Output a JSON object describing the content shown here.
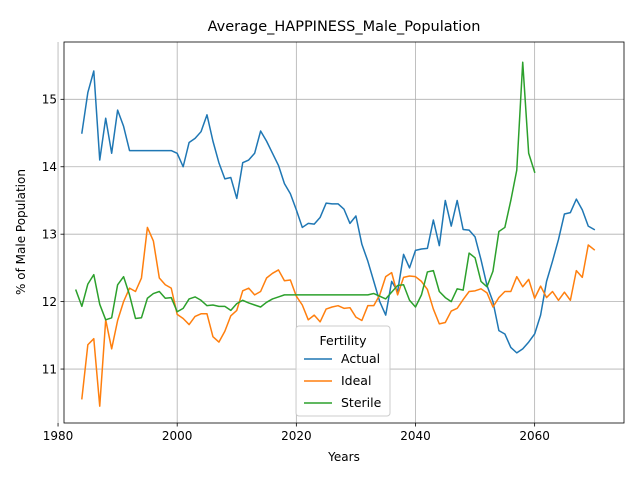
{
  "chart_data": {
    "type": "line",
    "title": "Average_HAPPINESS_Male_Population",
    "xlabel": "Years",
    "ylabel": "% of Male Population",
    "xlim": [
      1981,
      2075
    ],
    "ylim": [
      10.2,
      15.85
    ],
    "xticks": [
      1980,
      2000,
      2020,
      2040,
      2060
    ],
    "yticks": [
      11,
      12,
      13,
      14,
      15
    ],
    "grid": true,
    "legend": {
      "title": "Fertility",
      "placement": "lower center"
    },
    "series": [
      {
        "name": "Actual",
        "color": "#1f77b4",
        "x": [
          1984,
          1985,
          1986,
          1987,
          1988,
          1989,
          1990,
          1991,
          1992,
          1993,
          1994,
          1995,
          1996,
          1997,
          1998,
          1999,
          2000,
          2001,
          2002,
          2003,
          2004,
          2005,
          2006,
          2007,
          2008,
          2009,
          2010,
          2011,
          2012,
          2013,
          2014,
          2015,
          2016,
          2017,
          2018,
          2019,
          2020,
          2021,
          2022,
          2023,
          2024,
          2025,
          2026,
          2027,
          2028,
          2029,
          2030,
          2031,
          2032,
          2033,
          2034,
          2035,
          2036,
          2037,
          2038,
          2039,
          2040,
          2041,
          2042,
          2043,
          2044,
          2045,
          2046,
          2047,
          2048,
          2049,
          2050,
          2051,
          2052,
          2053,
          2054,
          2055,
          2056,
          2057,
          2058,
          2059,
          2060,
          2061,
          2062,
          2063,
          2064,
          2065,
          2066,
          2067,
          2068,
          2069,
          2070
        ],
        "y": [
          14.5,
          15.1,
          15.42,
          14.1,
          14.72,
          14.2,
          14.84,
          14.6,
          14.24,
          14.24,
          14.24,
          14.24,
          14.24,
          14.24,
          14.24,
          14.24,
          14.2,
          14.0,
          14.36,
          14.42,
          14.52,
          14.77,
          14.38,
          14.06,
          13.82,
          13.84,
          13.53,
          14.06,
          14.1,
          14.2,
          14.53,
          14.38,
          14.2,
          14.02,
          13.75,
          13.6,
          13.36,
          13.1,
          13.16,
          13.15,
          13.25,
          13.46,
          13.45,
          13.45,
          13.37,
          13.16,
          13.27,
          12.85,
          12.6,
          12.3,
          12.0,
          11.8,
          12.3,
          12.15,
          12.7,
          12.5,
          12.76,
          12.78,
          12.79,
          13.21,
          12.83,
          13.5,
          13.12,
          13.5,
          13.07,
          13.06,
          12.96,
          12.62,
          12.24,
          12.0,
          11.57,
          11.52,
          11.32,
          11.24,
          11.3,
          11.4,
          11.52,
          11.8,
          12.3,
          12.6,
          12.92,
          13.3,
          13.32,
          13.52,
          13.36,
          13.12,
          13.07
        ]
      },
      {
        "name": "Ideal",
        "color": "#ff7f0e",
        "x": [
          1984,
          1985,
          1986,
          1987,
          1988,
          1989,
          1990,
          1991,
          1992,
          1993,
          1994,
          1995,
          1996,
          1997,
          1998,
          1999,
          2000,
          2001,
          2002,
          2003,
          2004,
          2005,
          2006,
          2007,
          2008,
          2009,
          2010,
          2011,
          2012,
          2013,
          2014,
          2015,
          2016,
          2017,
          2018,
          2019,
          2020,
          2021,
          2022,
          2023,
          2024,
          2025,
          2026,
          2027,
          2028,
          2029,
          2030,
          2031,
          2032,
          2033,
          2034,
          2035,
          2036,
          2037,
          2038,
          2039,
          2040,
          2041,
          2042,
          2043,
          2044,
          2045,
          2046,
          2047,
          2048,
          2049,
          2050,
          2051,
          2052,
          2053,
          2054,
          2055,
          2056,
          2057,
          2058,
          2059,
          2060,
          2061,
          2062,
          2063,
          2064,
          2065,
          2066,
          2067,
          2068,
          2069,
          2070
        ],
        "y": [
          10.56,
          11.36,
          11.45,
          10.45,
          11.73,
          11.3,
          11.72,
          12.0,
          12.2,
          12.15,
          12.35,
          13.1,
          12.9,
          12.35,
          12.25,
          12.2,
          11.81,
          11.75,
          11.66,
          11.78,
          11.82,
          11.82,
          11.48,
          11.4,
          11.56,
          11.79,
          11.87,
          12.16,
          12.2,
          12.1,
          12.15,
          12.35,
          12.42,
          12.47,
          12.31,
          12.32,
          12.08,
          11.95,
          11.73,
          11.8,
          11.7,
          11.89,
          11.92,
          11.94,
          11.9,
          11.91,
          11.77,
          11.72,
          11.94,
          11.94,
          12.1,
          12.37,
          12.43,
          12.1,
          12.36,
          12.38,
          12.37,
          12.3,
          12.18,
          11.89,
          11.67,
          11.69,
          11.86,
          11.9,
          12.03,
          12.15,
          12.16,
          12.19,
          12.13,
          11.92,
          12.06,
          12.15,
          12.15,
          12.37,
          12.22,
          12.33,
          12.05,
          12.23,
          12.06,
          12.15,
          12.02,
          12.14,
          12.02,
          12.46,
          12.36,
          12.84,
          12.77
        ]
      },
      {
        "name": "Sterile",
        "color": "#2ca02c",
        "x": [
          1983,
          1984,
          1985,
          1986,
          1987,
          1988,
          1989,
          1990,
          1991,
          1992,
          1993,
          1994,
          1995,
          1996,
          1997,
          1998,
          1999,
          2000,
          2001,
          2002,
          2003,
          2004,
          2005,
          2006,
          2007,
          2008,
          2009,
          2010,
          2011,
          2012,
          2013,
          2014,
          2015,
          2016,
          2017,
          2018,
          2019,
          2020,
          2021,
          2022,
          2023,
          2024,
          2025,
          2026,
          2027,
          2028,
          2029,
          2030,
          2031,
          2032,
          2033,
          2034,
          2035,
          2036,
          2037,
          2038,
          2039,
          2040,
          2041,
          2042,
          2043,
          2044,
          2045,
          2046,
          2047,
          2048,
          2049,
          2050,
          2051,
          2052,
          2053,
          2054,
          2055,
          2056,
          2057,
          2058,
          2059,
          2060
        ],
        "y": [
          12.17,
          11.93,
          12.26,
          12.4,
          11.96,
          11.73,
          11.76,
          12.25,
          12.37,
          12.1,
          11.75,
          11.76,
          12.05,
          12.12,
          12.15,
          12.05,
          12.06,
          11.85,
          11.9,
          12.04,
          12.07,
          12.02,
          11.94,
          11.95,
          11.93,
          11.93,
          11.87,
          11.97,
          12.02,
          11.98,
          11.95,
          11.92,
          11.99,
          12.04,
          12.07,
          12.1,
          12.1,
          12.1,
          12.1,
          12.1,
          12.1,
          12.1,
          12.1,
          12.1,
          12.1,
          12.1,
          12.1,
          12.1,
          12.1,
          12.1,
          12.12,
          12.08,
          12.04,
          12.14,
          12.24,
          12.25,
          12.02,
          11.92,
          12.1,
          12.44,
          12.46,
          12.15,
          12.06,
          12.0,
          12.19,
          12.17,
          12.72,
          12.65,
          12.3,
          12.22,
          12.45,
          13.04,
          13.1,
          13.5,
          13.95,
          15.55,
          14.2,
          13.92
        ]
      }
    ]
  }
}
